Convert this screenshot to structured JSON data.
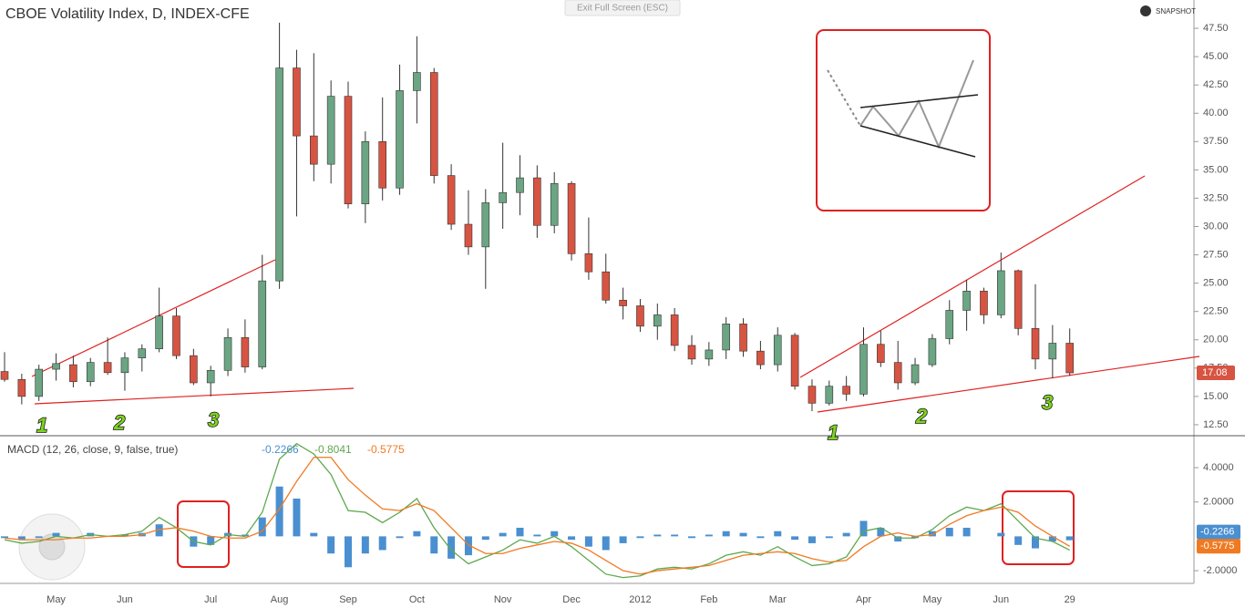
{
  "ui": {
    "exit_button": "Exit Full Screen (ESC)",
    "snapshot": "SNAPSHOT"
  },
  "chart_data": [
    {
      "type": "candlestick",
      "title": "CBOE Volatility Index, D, INDEX-CFE",
      "categories": [
        null,
        null,
        null,
        "May",
        null,
        null,
        null,
        "Jun",
        null,
        null,
        null,
        null,
        "Jul",
        null,
        null,
        null,
        "Aug",
        null,
        null,
        null,
        "Sep",
        null,
        null,
        null,
        "Oct",
        null,
        null,
        null,
        null,
        "Nov",
        null,
        null,
        null,
        "Dec",
        null,
        null,
        null,
        "2012",
        null,
        null,
        null,
        "Feb",
        null,
        null,
        null,
        "Mar",
        null,
        null,
        null,
        null,
        "Apr",
        null,
        null,
        null,
        "May",
        null,
        null,
        null,
        "Jun",
        null,
        null,
        null,
        "29"
      ],
      "open": [
        17.2,
        16.5,
        15.0,
        17.4,
        17.8,
        16.3,
        18.0,
        17.1,
        18.4,
        19.2,
        22.1,
        18.6,
        16.2,
        17.3,
        20.2,
        17.6,
        25.2,
        44.0,
        38.0,
        35.5,
        41.5,
        32.0,
        37.5,
        33.4,
        42.0,
        43.6,
        34.5,
        30.2,
        28.2,
        32.1,
        33.0,
        34.3,
        30.1,
        33.8,
        27.6,
        26.0,
        23.5,
        23.0,
        21.2,
        22.2,
        19.5,
        18.3,
        19.1,
        21.4,
        19.0,
        17.8,
        20.4,
        15.9,
        14.4,
        15.9,
        15.2,
        19.6,
        18.0,
        16.2,
        17.8,
        20.1,
        22.6,
        24.3,
        22.2,
        26.1,
        21.0,
        18.3,
        19.7
      ],
      "high": [
        18.9,
        17.0,
        17.8,
        18.8,
        18.6,
        18.4,
        20.2,
        18.9,
        19.6,
        24.6,
        22.8,
        19.2,
        17.7,
        21.0,
        21.8,
        27.5,
        48.0,
        45.6,
        45.3,
        42.9,
        42.8,
        38.4,
        41.4,
        44.3,
        46.8,
        44.0,
        35.5,
        33.2,
        33.3,
        37.4,
        36.3,
        35.4,
        34.8,
        34.0,
        30.8,
        27.6,
        24.6,
        23.6,
        23.2,
        22.8,
        20.4,
        19.8,
        22.0,
        21.9,
        19.9,
        21.1,
        20.6,
        16.5,
        16.4,
        16.8,
        21.1,
        20.8,
        19.9,
        18.4,
        20.5,
        23.5,
        25.3,
        24.6,
        27.7,
        26.2,
        24.9,
        21.3,
        21.0
      ],
      "low": [
        16.3,
        14.3,
        14.6,
        16.4,
        15.8,
        15.9,
        16.9,
        15.5,
        17.2,
        18.9,
        18.3,
        16.0,
        15.0,
        16.8,
        17.1,
        17.4,
        24.5,
        30.9,
        34.0,
        33.8,
        31.6,
        30.3,
        32.3,
        32.8,
        39.1,
        33.8,
        29.7,
        27.5,
        24.5,
        29.8,
        31.0,
        29.0,
        29.4,
        27.0,
        25.3,
        23.2,
        21.8,
        20.7,
        20.0,
        19.0,
        17.8,
        17.7,
        18.3,
        18.5,
        17.4,
        17.2,
        15.6,
        13.7,
        14.2,
        14.6,
        15.0,
        17.6,
        15.6,
        16.0,
        17.6,
        19.6,
        20.8,
        21.4,
        21.9,
        20.4,
        17.4,
        16.6,
        16.8
      ],
      "close": [
        16.5,
        15.0,
        17.4,
        17.9,
        16.3,
        18.0,
        17.1,
        18.4,
        19.2,
        22.1,
        18.6,
        16.2,
        17.3,
        20.2,
        17.6,
        25.2,
        44.0,
        38.0,
        35.5,
        41.5,
        32.0,
        37.5,
        33.4,
        42.0,
        43.6,
        34.5,
        30.2,
        28.2,
        32.1,
        33.0,
        34.3,
        30.1,
        33.8,
        27.6,
        26.0,
        23.5,
        23.0,
        21.2,
        22.2,
        19.5,
        18.3,
        19.1,
        21.4,
        19.0,
        17.8,
        20.4,
        15.9,
        14.4,
        15.9,
        15.2,
        19.6,
        18.0,
        16.2,
        17.8,
        20.1,
        22.6,
        24.3,
        22.2,
        26.1,
        21.0,
        18.3,
        19.7,
        17.08
      ],
      "up_color": "#6ba583",
      "down_color": "#d75442",
      "ylim": [
        11.53,
        50.0
      ],
      "yticks": [
        {
          "value": 12.5,
          "label": "12.50"
        },
        {
          "value": 15,
          "label": "15.00"
        },
        {
          "value": 17.5,
          "label": "17.50"
        },
        {
          "value": 20,
          "label": "20.00"
        },
        {
          "value": 22.5,
          "label": "22.50"
        },
        {
          "value": 25,
          "label": "25.00"
        },
        {
          "value": 27.5,
          "label": "27.50"
        },
        {
          "value": 30,
          "label": "30.00"
        },
        {
          "value": 32.5,
          "label": "32.50"
        },
        {
          "value": 35,
          "label": "35.00"
        },
        {
          "value": 37.5,
          "label": "37.50"
        },
        {
          "value": 40,
          "label": "40.00"
        },
        {
          "value": 42.5,
          "label": "42.50"
        },
        {
          "value": 45,
          "label": "45.00"
        },
        {
          "value": 47.5,
          "label": "47.50"
        }
      ],
      "grid": false,
      "annotations": [
        "1",
        "2",
        "3",
        "1",
        "2",
        "3"
      ]
    },
    {
      "type": "macd",
      "title": "MACD (12, 26, close, 9, false, true)",
      "series": [
        {
          "kind": "histogram",
          "color": "#4a8fd0",
          "values": [
            -0.1,
            -0.2,
            -0.1,
            0.2,
            0.0,
            0.2,
            0.0,
            0.1,
            0.2,
            0.7,
            0.0,
            -0.6,
            -0.5,
            0.2,
            0.1,
            1.1,
            2.9,
            2.2,
            0.2,
            -1.0,
            -1.8,
            -1.0,
            -0.8,
            -0.1,
            0.3,
            -1.0,
            -1.3,
            -1.1,
            -0.2,
            0.2,
            0.5,
            0.1,
            0.3,
            -0.2,
            -0.6,
            -0.8,
            -0.4,
            -0.1,
            0.1,
            0.1,
            -0.1,
            0.1,
            0.3,
            0.2,
            -0.1,
            0.3,
            -0.2,
            -0.4,
            -0.1,
            0.2,
            0.9,
            0.5,
            -0.3,
            -0.1,
            0.3,
            0.5,
            0.5,
            0.0,
            0.2,
            -0.5,
            -0.7,
            -0.3,
            -0.2266
          ]
        },
        {
          "kind": "line",
          "color": "#5ea84f",
          "values": [
            -0.2,
            -0.4,
            -0.3,
            0.0,
            -0.1,
            0.1,
            0.0,
            0.1,
            0.3,
            1.1,
            0.5,
            -0.3,
            -0.5,
            0.1,
            0.0,
            1.4,
            4.5,
            5.4,
            4.8,
            3.6,
            1.5,
            1.4,
            0.8,
            1.4,
            2.2,
            0.5,
            -0.8,
            -1.6,
            -1.2,
            -0.8,
            -0.2,
            -0.4,
            0.0,
            -0.6,
            -1.4,
            -2.2,
            -2.4,
            -2.3,
            -1.9,
            -1.8,
            -1.9,
            -1.6,
            -1.1,
            -0.9,
            -1.1,
            -0.6,
            -1.2,
            -1.7,
            -1.6,
            -1.2,
            0.3,
            0.5,
            -0.1,
            -0.1,
            0.4,
            1.2,
            1.7,
            1.5,
            1.9,
            0.9,
            -0.1,
            -0.3,
            -0.8041
          ]
        },
        {
          "kind": "line",
          "color": "#f07a22",
          "values": [
            -0.1,
            -0.2,
            -0.2,
            -0.2,
            -0.1,
            -0.1,
            0.0,
            0.0,
            0.1,
            0.4,
            0.5,
            0.3,
            0.0,
            -0.1,
            -0.1,
            0.3,
            1.6,
            3.2,
            4.6,
            4.6,
            3.3,
            2.4,
            1.6,
            1.5,
            1.9,
            1.5,
            0.5,
            -0.5,
            -1.0,
            -1.0,
            -0.7,
            -0.5,
            -0.3,
            -0.4,
            -0.8,
            -1.4,
            -2.0,
            -2.2,
            -2.0,
            -1.9,
            -1.8,
            -1.7,
            -1.4,
            -1.1,
            -1.0,
            -0.9,
            -1.0,
            -1.3,
            -1.5,
            -1.4,
            -0.6,
            0.0,
            0.2,
            0.0,
            0.1,
            0.7,
            1.2,
            1.5,
            1.7,
            1.4,
            0.6,
            0.0,
            -0.5775
          ]
        }
      ],
      "ylim": [
        -2.74,
        5.86
      ],
      "yticks": [
        {
          "value": 4,
          "label": "4.0000"
        },
        {
          "value": 2,
          "label": "2.0000"
        },
        {
          "value": -2,
          "label": "-2.0000"
        }
      ]
    }
  ]
}
